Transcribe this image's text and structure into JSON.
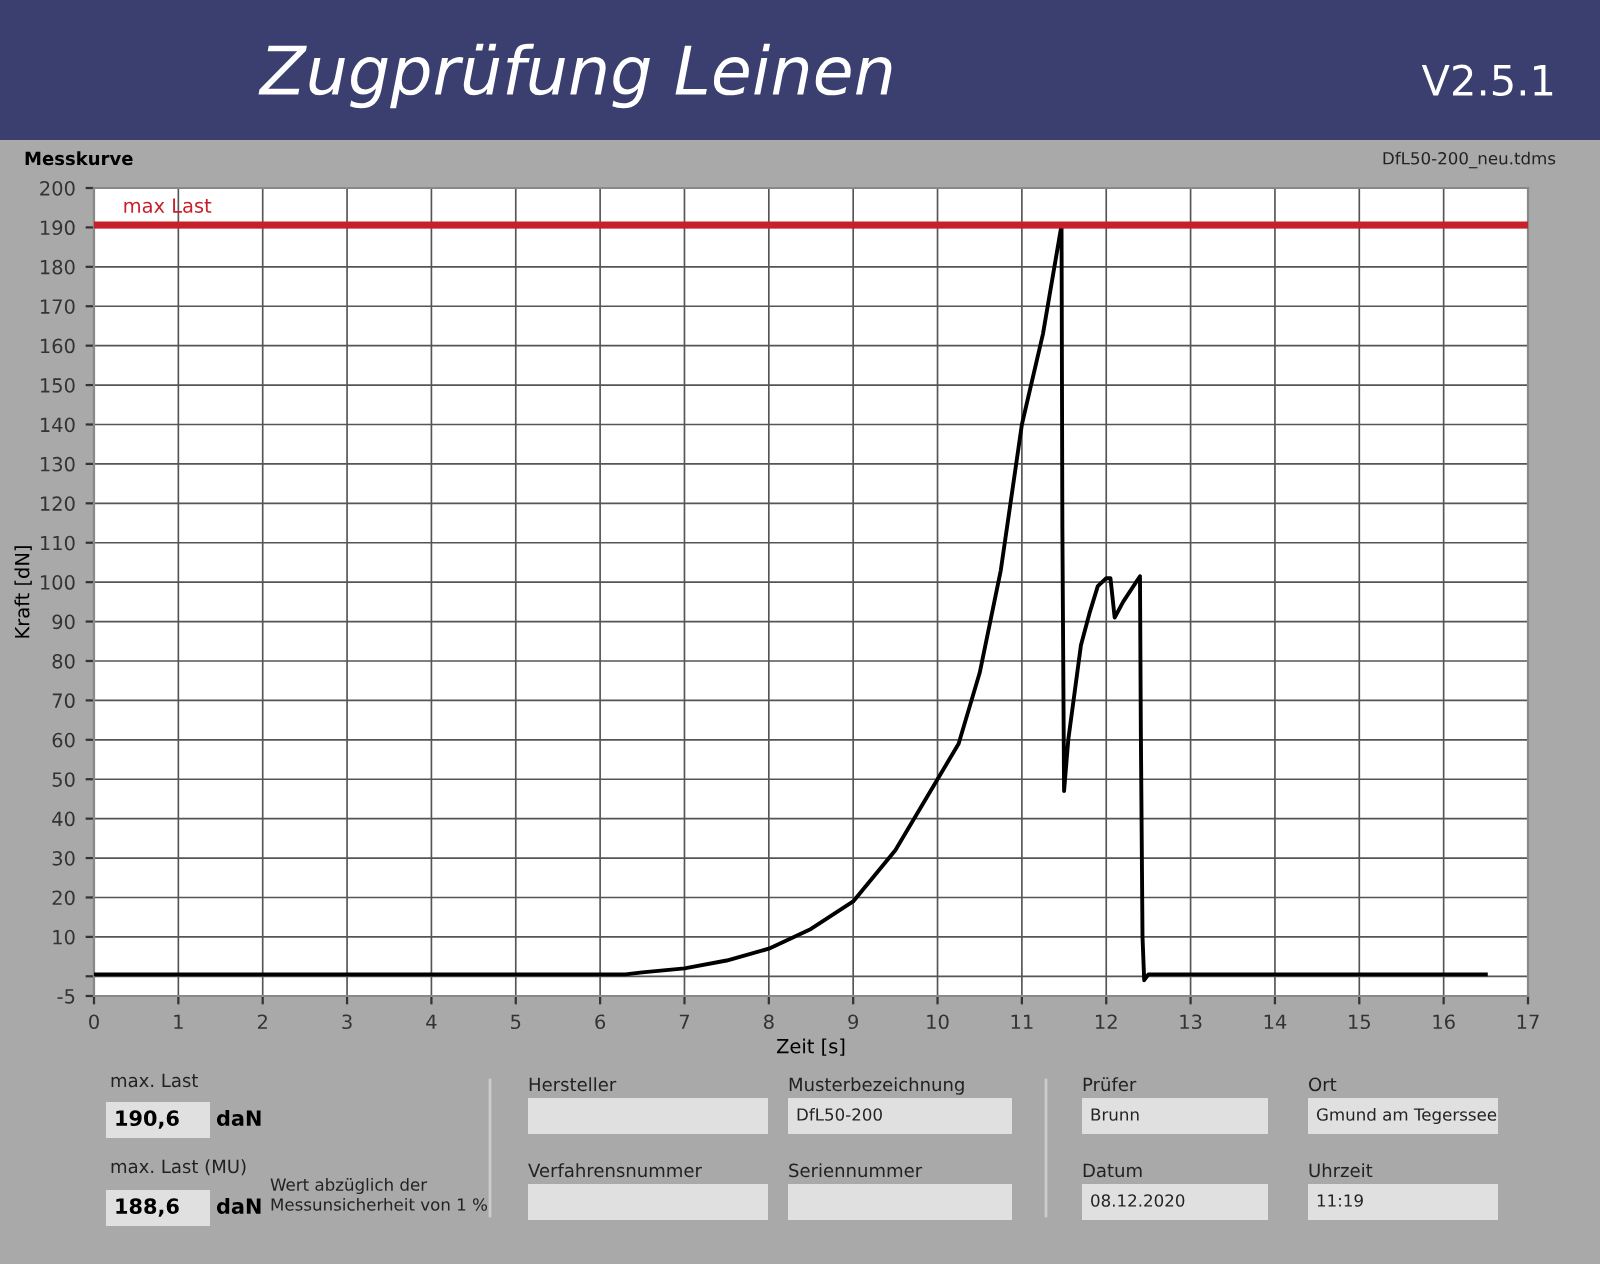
{
  "chart_data": {
    "type": "line",
    "title": "Zugprüfung Leinen",
    "xlabel": "Zeit [s]",
    "ylabel": "Kraft [dN]",
    "xlim": [
      0,
      17
    ],
    "xticks": [
      0,
      1,
      2,
      3,
      4,
      5,
      6,
      7,
      8,
      9,
      10,
      11,
      12,
      13,
      14,
      15,
      16,
      17
    ],
    "ylim": [
      -5,
      200
    ],
    "yticks": [
      -5,
      {
        "value": 0,
        "label": null
      },
      10,
      20,
      30,
      40,
      50,
      60,
      70,
      80,
      90,
      100,
      110,
      120,
      130,
      140,
      150,
      160,
      170,
      180,
      190,
      200
    ],
    "grid": true,
    "legend": false,
    "marker": "none",
    "line_style": "solid",
    "series": [
      {
        "color": "#000000",
        "x": [
          0,
          6.3,
          6.5,
          7,
          7.5,
          8,
          8.5,
          9,
          9.5,
          10,
          10.25,
          10.5,
          10.75,
          11,
          11.25,
          11.47,
          11.48,
          11.5,
          11.55,
          11.7,
          11.8,
          11.9,
          12.0,
          12.05,
          12.1,
          12.2,
          12.4,
          12.41,
          12.43,
          12.45,
          12.5,
          16.5
        ],
        "values": [
          0.5,
          0.5,
          1,
          2,
          4,
          7,
          12,
          19,
          32,
          50,
          59,
          77,
          103,
          140,
          163,
          190.6,
          114,
          47,
          60,
          84,
          92,
          99,
          101,
          101,
          91,
          95,
          101.5,
          63,
          10,
          -1,
          0.5,
          0.5
        ]
      }
    ],
    "ref_lines": [
      {
        "axis": "y",
        "value": 190.6,
        "label": "max Last",
        "color": "#c8202a",
        "line_style": "solid"
      }
    ],
    "annotations": [
      "V2.5.1",
      "Messkurve",
      "DfL50-200_neu.tdms",
      "max. Last",
      "190,6",
      "daN",
      "max. Last (MU)",
      "188,6",
      "daN",
      "Wert abzüglich der\nMessunsicherheit von 1 %",
      "Hersteller",
      "Musterbezeichnung",
      "DfL50-200",
      "Verfahrensnummer",
      "Seriennummer",
      "Prüfer",
      "Brunn",
      "Ort",
      "Gmund am Tegerssee",
      "Datum",
      "08.12.2020",
      "Uhrzeit",
      "11:19"
    ]
  }
}
